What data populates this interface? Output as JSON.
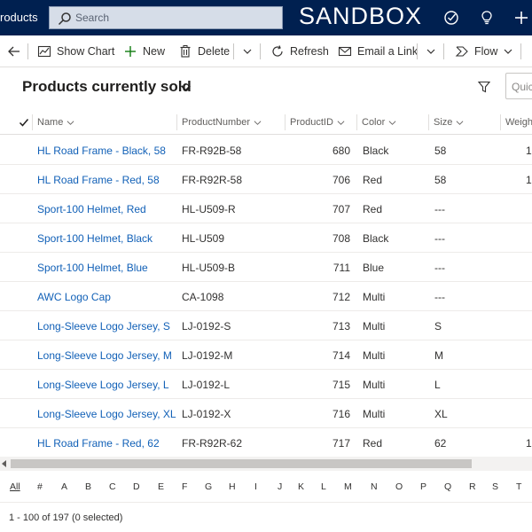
{
  "topbar": {
    "app_name": "roducts",
    "search_placeholder": "Search",
    "environment_label": "SANDBOX"
  },
  "commandbar": {
    "back_icon": "back-arrow-icon",
    "items": [
      {
        "label": "Show Chart",
        "icon": "chart-icon"
      },
      {
        "label": "New",
        "icon": "plus-icon"
      },
      {
        "label": "Delete",
        "icon": "trash-icon"
      },
      {
        "label": "Refresh",
        "icon": "refresh-icon"
      },
      {
        "label": "Email a Link",
        "icon": "email-icon"
      },
      {
        "label": "Flow",
        "icon": "flow-icon"
      }
    ]
  },
  "view": {
    "title": "Products currently sold",
    "quick_find_placeholder": "Quick"
  },
  "grid": {
    "columns": [
      "Name",
      "ProductNumber",
      "ProductID",
      "Color",
      "Size",
      "Weight"
    ],
    "rows": [
      {
        "name": "HL Road Frame - Black, 58",
        "number": "FR-R92B-58",
        "id": "680",
        "color": "Black",
        "size": "58",
        "weight": "1"
      },
      {
        "name": "HL Road Frame - Red, 58",
        "number": "FR-R92R-58",
        "id": "706",
        "color": "Red",
        "size": "58",
        "weight": "1"
      },
      {
        "name": "Sport-100 Helmet, Red",
        "number": "HL-U509-R",
        "id": "707",
        "color": "Red",
        "size": "---",
        "weight": ""
      },
      {
        "name": "Sport-100 Helmet, Black",
        "number": "HL-U509",
        "id": "708",
        "color": "Black",
        "size": "---",
        "weight": ""
      },
      {
        "name": "Sport-100 Helmet, Blue",
        "number": "HL-U509-B",
        "id": "711",
        "color": "Blue",
        "size": "---",
        "weight": ""
      },
      {
        "name": "AWC Logo Cap",
        "number": "CA-1098",
        "id": "712",
        "color": "Multi",
        "size": "---",
        "weight": ""
      },
      {
        "name": "Long-Sleeve Logo Jersey, S",
        "number": "LJ-0192-S",
        "id": "713",
        "color": "Multi",
        "size": "S",
        "weight": ""
      },
      {
        "name": "Long-Sleeve Logo Jersey, M",
        "number": "LJ-0192-M",
        "id": "714",
        "color": "Multi",
        "size": "M",
        "weight": ""
      },
      {
        "name": "Long-Sleeve Logo Jersey, L",
        "number": "LJ-0192-L",
        "id": "715",
        "color": "Multi",
        "size": "L",
        "weight": ""
      },
      {
        "name": "Long-Sleeve Logo Jersey, XL",
        "number": "LJ-0192-X",
        "id": "716",
        "color": "Multi",
        "size": "XL",
        "weight": ""
      },
      {
        "name": "HL Road Frame - Red, 62",
        "number": "FR-R92R-62",
        "id": "717",
        "color": "Red",
        "size": "62",
        "weight": "1"
      }
    ]
  },
  "jumpbar": [
    "All",
    "#",
    "A",
    "B",
    "C",
    "D",
    "E",
    "F",
    "G",
    "H",
    "I",
    "J",
    "K",
    "L",
    "M",
    "N",
    "O",
    "P",
    "Q",
    "R",
    "S",
    "T"
  ],
  "footer": {
    "status": "1 - 100 of 197 (0 selected)"
  },
  "colors": {
    "topbar": "#002050",
    "link": "#1160b7",
    "accent": "#0078d4"
  }
}
